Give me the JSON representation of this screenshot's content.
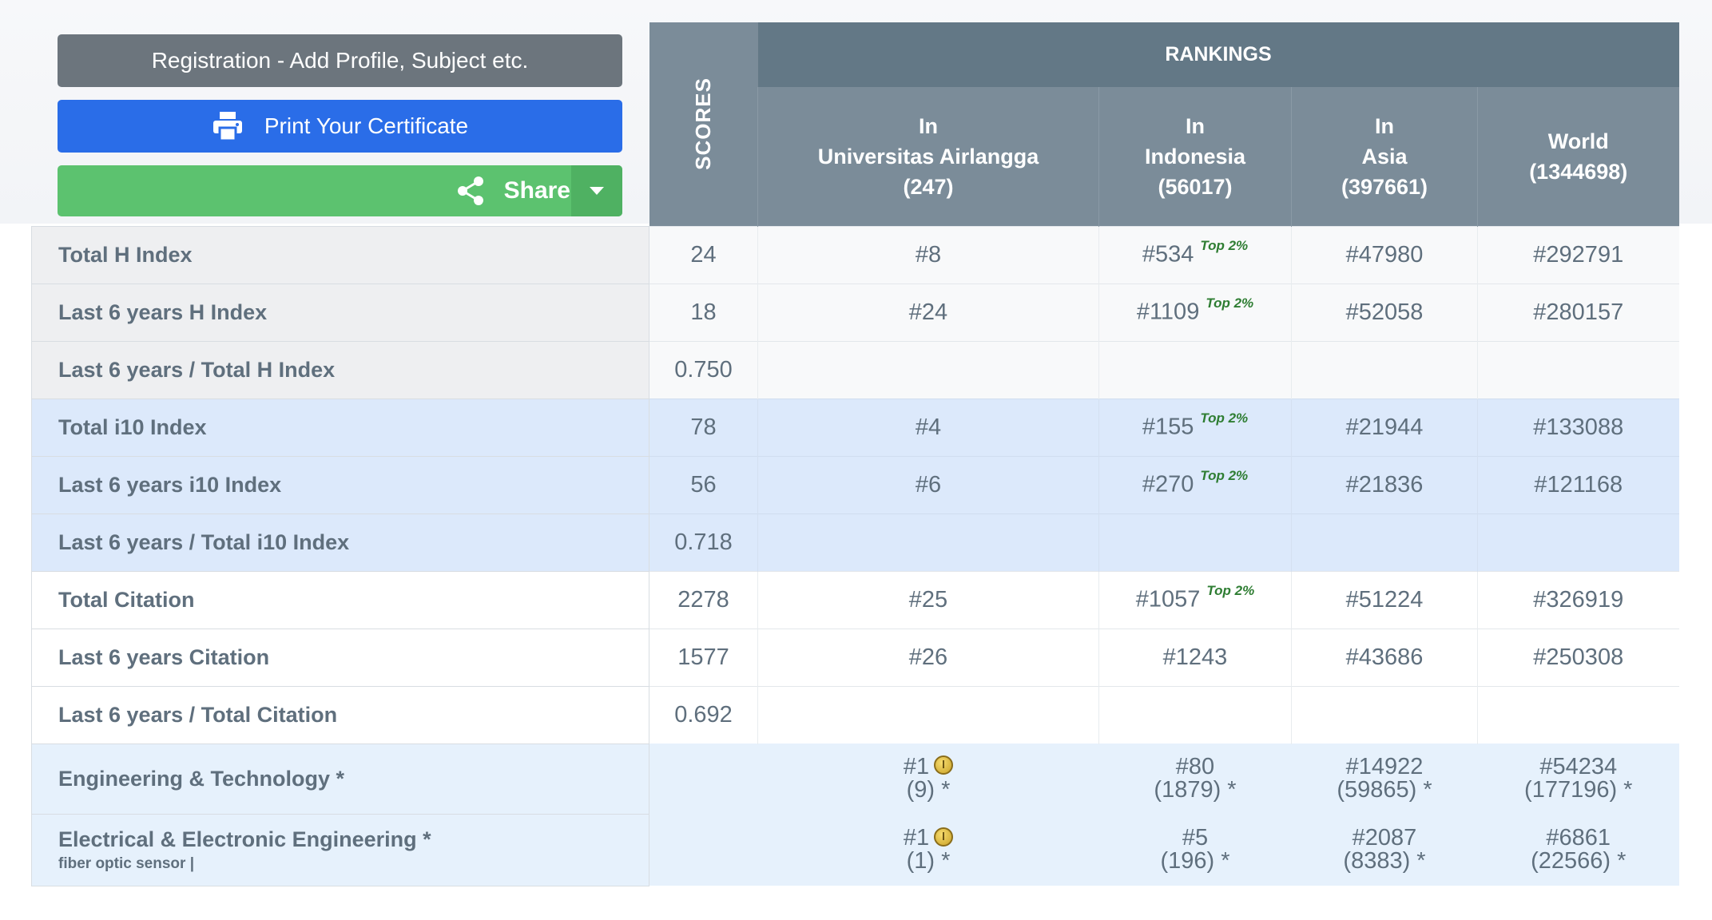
{
  "buttons": {
    "registration": "Registration - Add Profile, Subject etc.",
    "print": "Print Your Certificate",
    "share": "Share"
  },
  "header": {
    "scores": "SCORES",
    "rankings": "RANKINGS",
    "col_university": [
      "In",
      "Universitas Airlangga",
      "(247)"
    ],
    "col_country": [
      "In",
      "Indonesia",
      "(56017)"
    ],
    "col_region": [
      "In",
      "Asia",
      "(397661)"
    ],
    "col_world": [
      "World",
      "(1344698)"
    ]
  },
  "top_badge": "Top 2%",
  "rows": [
    {
      "label": "Total H Index",
      "score": "24",
      "uni": "#8",
      "country": "#534",
      "country_top": true,
      "asia": "#47980",
      "world": "#292791"
    },
    {
      "label": "Last 6 years H Index",
      "score": "18",
      "uni": "#24",
      "country": "#1109",
      "country_top": true,
      "asia": "#52058",
      "world": "#280157"
    },
    {
      "label": "Last 6 years / Total H Index",
      "score": "0.750",
      "uni": "",
      "country": "",
      "asia": "",
      "world": ""
    },
    {
      "label": "Total i10 Index",
      "score": "78",
      "uni": "#4",
      "country": "#155",
      "country_top": true,
      "asia": "#21944",
      "world": "#133088"
    },
    {
      "label": "Last 6 years i10 Index",
      "score": "56",
      "uni": "#6",
      "country": "#270",
      "country_top": true,
      "asia": "#21836",
      "world": "#121168"
    },
    {
      "label": "Last 6 years / Total i10 Index",
      "score": "0.718",
      "uni": "",
      "country": "",
      "asia": "",
      "world": ""
    },
    {
      "label": "Total Citation",
      "score": "2278",
      "uni": "#25",
      "country": "#1057",
      "country_top": true,
      "asia": "#51224",
      "world": "#326919"
    },
    {
      "label": "Last 6 years Citation",
      "score": "1577",
      "uni": "#26",
      "country": "#1243",
      "asia": "#43686",
      "world": "#250308"
    },
    {
      "label": "Last 6 years / Total Citation",
      "score": "0.692",
      "uni": "",
      "country": "",
      "asia": "",
      "world": ""
    }
  ],
  "subjects": [
    {
      "label": "Engineering & Technology *",
      "sublabel": "",
      "uni": [
        "#1",
        "(9) *"
      ],
      "uni_medal": true,
      "country": [
        "#80",
        "(1879) *"
      ],
      "asia": [
        "#14922",
        "(59865) *"
      ],
      "world": [
        "#54234",
        "(177196) *"
      ]
    },
    {
      "label": "Electrical & Electronic Engineering *",
      "sublabel": "fiber optic sensor |",
      "uni": [
        "#1",
        "(1) *"
      ],
      "uni_medal": true,
      "country": [
        "#5",
        "(196) *"
      ],
      "asia": [
        "#2087",
        "(8383) *"
      ],
      "world": [
        "#6861",
        "(22566) *"
      ]
    }
  ],
  "colors": {
    "header_dark": "#637886",
    "header": "#7b8c99",
    "print_button": "#2a6de8",
    "share_button": "#5cc26f",
    "reg_button": "#6c757d",
    "highlight_row": "#dce9fb",
    "top_badge": "#2e7d32"
  }
}
